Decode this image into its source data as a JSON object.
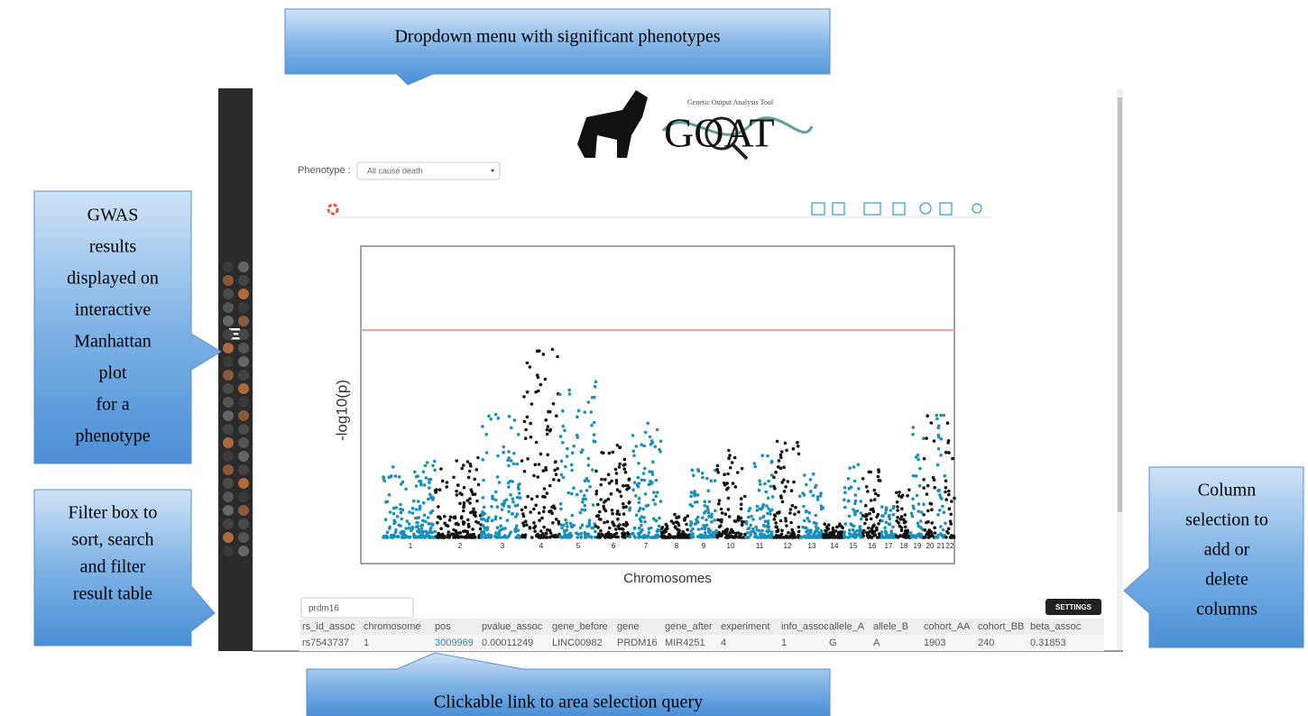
{
  "callouts": {
    "dropdown": "Dropdown menu with significant phenotypes",
    "gwas": [
      "GWAS",
      "results",
      "displayed on",
      "interactive",
      "Manhattan",
      "plot",
      "for  a",
      "phenotype"
    ],
    "filter": [
      "Filter box to",
      "sort, search",
      "and filter",
      "result table"
    ],
    "columns": [
      "Column",
      "selection to",
      "add or",
      "delete",
      "columns"
    ],
    "link": "Clickable link to area selection query"
  },
  "app": {
    "logo_subtitle": "Genetic Output Analysis Tool",
    "logo": "GOAT",
    "phenotype_label": "Phenotype :",
    "phenotype_value": "All cause death",
    "plot": {
      "y_label": "-log10(p)",
      "x_label": "Chromosomes",
      "chromosomes": [
        "1",
        "2",
        "3",
        "4",
        "5",
        "6",
        "7",
        "8",
        "9",
        "10",
        "11",
        "12",
        "13",
        "14",
        "15",
        "16",
        "17",
        "18",
        "19",
        "20",
        "21",
        "22"
      ]
    },
    "filter_value": "prdm16",
    "settings": "SETTINGS",
    "table": {
      "columns": [
        "rs_id_assoc",
        "chromosome",
        "pos",
        "pvalue_assoc",
        "gene_before",
        "gene",
        "gene_after",
        "experiment",
        "info_assoc",
        "allele_A",
        "allele_B",
        "cohort_AA",
        "cohort_BB",
        "beta_assoc"
      ],
      "rows": [
        [
          "rs7543737",
          "1",
          "3009969",
          "0.00011249",
          "LINC00982",
          "PRDM16",
          "MIR4251",
          "4",
          "1",
          "G",
          "A",
          "1903",
          "240",
          "0.31853"
        ]
      ]
    }
  }
}
